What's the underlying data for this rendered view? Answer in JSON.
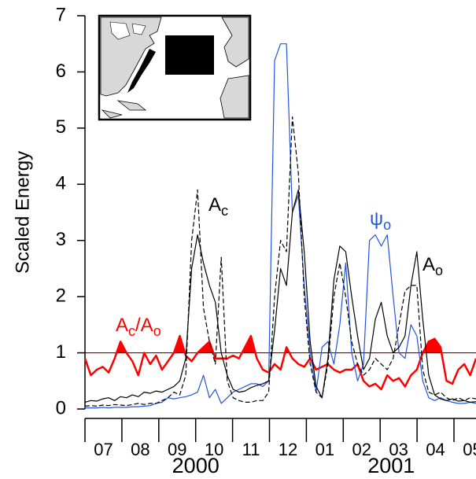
{
  "chart_data": {
    "type": "line",
    "ylabel": "Scaled Energy",
    "ylim": [
      0,
      7
    ],
    "yticks": [
      0,
      1,
      2,
      3,
      4,
      5,
      6,
      7
    ],
    "xlim": [
      0,
      10.6
    ],
    "years": [
      {
        "label": "2000",
        "months": [
          "07",
          "08",
          "09",
          "10",
          "11",
          "12"
        ]
      },
      {
        "label": "2001",
        "months": [
          "01",
          "02",
          "03",
          "04",
          "05"
        ]
      }
    ],
    "hline": 1,
    "series": [
      {
        "color": "#000000",
        "dash": false,
        "width": 1.2,
        "fill_above_hline": false,
        "values": [
          0.12,
          0.15,
          0.14,
          0.18,
          0.2,
          0.15,
          0.22,
          0.2,
          0.25,
          0.22,
          0.3,
          0.28,
          0.32,
          0.3,
          0.35,
          0.4,
          0.5,
          0.9,
          2.5,
          3.1,
          2.6,
          2.2,
          1.9,
          1.0,
          0.6,
          0.35,
          0.3,
          0.32,
          0.38,
          0.42,
          0.45,
          0.5,
          1.4,
          2.5,
          2.2,
          3.5,
          3.9,
          2.8,
          1.2,
          0.4,
          0.2,
          0.9,
          2.3,
          2.9,
          2.8,
          2.0,
          1.3,
          0.7,
          0.9,
          1.6,
          1.9,
          1.3,
          1.0,
          1.1,
          1.3,
          2.2,
          2.8,
          1.6,
          0.6,
          0.25,
          0.18,
          0.15,
          0.18,
          0.14,
          0.15,
          0.12,
          0.13
        ]
      },
      {
        "color": "#000000",
        "dash": true,
        "width": 1.2,
        "fill_above_hline": false,
        "values": [
          0.05,
          0.06,
          0.05,
          0.07,
          0.06,
          0.08,
          0.07,
          0.06,
          0.08,
          0.1,
          0.08,
          0.1,
          0.1,
          0.15,
          0.2,
          0.3,
          0.25,
          0.6,
          3.0,
          3.9,
          1.8,
          1.2,
          0.8,
          2.7,
          0.5,
          0.2,
          0.15,
          0.12,
          0.12,
          0.15,
          0.15,
          0.3,
          2.0,
          3.0,
          2.8,
          5.2,
          4.2,
          2.0,
          0.8,
          0.3,
          0.2,
          0.8,
          2.0,
          2.6,
          2.0,
          1.2,
          0.8,
          0.6,
          0.7,
          0.9,
          0.8,
          0.7,
          0.9,
          1.5,
          2.1,
          2.2,
          2.2,
          0.7,
          0.3,
          0.25,
          0.3,
          0.2,
          0.15,
          0.2,
          0.15,
          0.2,
          0.18
        ]
      },
      {
        "color": "#2255dd",
        "dash": false,
        "width": 1.2,
        "fill_above_hline": false,
        "values": [
          0.02,
          0.02,
          0.02,
          0.03,
          0.02,
          0.03,
          0.03,
          0.03,
          0.04,
          0.04,
          0.05,
          0.06,
          0.1,
          0.12,
          0.2,
          0.18,
          0.2,
          0.22,
          0.25,
          0.3,
          0.6,
          0.2,
          0.35,
          0.1,
          0.2,
          0.3,
          0.35,
          0.4,
          0.45,
          0.45,
          0.4,
          0.5,
          6.2,
          6.5,
          6.5,
          3.5,
          3.8,
          2.2,
          1.0,
          0.3,
          1.1,
          1.2,
          0.8,
          1.5,
          2.6,
          1.0,
          0.5,
          0.8,
          3.0,
          3.1,
          2.9,
          3.1,
          2.0,
          1.0,
          0.9,
          1.5,
          1.3,
          0.5,
          0.2,
          0.15,
          0.2,
          0.15,
          0.12,
          0.1,
          0.1,
          0.12,
          0.1
        ]
      },
      {
        "color": "#ff0000",
        "dash": false,
        "width": 2.5,
        "fill_above_hline": true,
        "values": [
          0.9,
          0.6,
          0.7,
          0.75,
          0.65,
          0.9,
          1.2,
          1.0,
          0.85,
          0.6,
          1.0,
          0.8,
          0.95,
          0.7,
          0.85,
          1.0,
          1.3,
          0.95,
          0.85,
          1.0,
          1.1,
          1.2,
          0.9,
          0.9,
          0.9,
          0.95,
          0.9,
          1.1,
          1.3,
          0.9,
          0.7,
          0.65,
          0.8,
          0.7,
          1.1,
          0.9,
          0.8,
          0.75,
          0.9,
          0.7,
          0.75,
          0.8,
          0.7,
          0.65,
          0.7,
          0.7,
          0.8,
          0.5,
          0.4,
          0.45,
          0.35,
          0.6,
          0.5,
          0.55,
          0.4,
          0.6,
          0.7,
          1.0,
          1.2,
          1.25,
          1.1,
          0.5,
          0.45,
          0.7,
          0.8,
          0.6,
          0.9
        ]
      }
    ],
    "annotations": [
      {
        "color": "#000000",
        "parts": [
          {
            "text": "A",
            "sub": false
          },
          {
            "text": "c",
            "sub": true
          }
        ]
      },
      {
        "color": "#2255dd",
        "parts": [
          {
            "text": "ψ",
            "sub": false
          },
          {
            "text": "o",
            "sub": true
          }
        ]
      },
      {
        "color": "#000000",
        "parts": [
          {
            "text": "A",
            "sub": false
          },
          {
            "text": "o",
            "sub": true
          }
        ]
      },
      {
        "color": "#ff0000",
        "parts": [
          {
            "text": "A",
            "sub": false
          },
          {
            "text": "c",
            "sub": true
          },
          {
            "text": "/A",
            "sub": false
          },
          {
            "text": "o",
            "sub": true
          }
        ]
      }
    ]
  }
}
